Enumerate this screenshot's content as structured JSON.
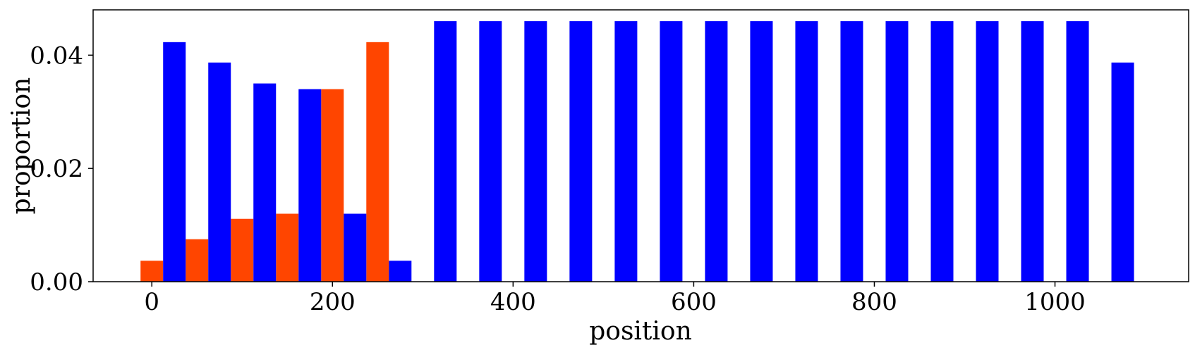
{
  "chart_data": {
    "type": "bar",
    "xlabel": "position",
    "ylabel": "proportion",
    "xlim": [
      -65,
      1148
    ],
    "ylim": [
      0,
      0.048
    ],
    "bar_width": 25,
    "grid": false,
    "legend": "none",
    "series": [
      {
        "color": "#ff4500",
        "x": [
          0,
          50,
          100,
          150,
          200,
          250
        ],
        "values": [
          0.0037,
          0.0075,
          0.0111,
          0.012,
          0.034,
          0.0423
        ]
      },
      {
        "color": "#0000ff",
        "x": [
          25,
          75,
          125,
          175,
          225,
          275,
          325,
          375,
          425,
          475,
          525,
          575,
          625,
          675,
          725,
          775,
          825,
          875,
          925,
          975,
          1025,
          1075
        ],
        "values": [
          0.0423,
          0.0387,
          0.035,
          0.034,
          0.012,
          0.0037,
          0.046,
          0.046,
          0.046,
          0.046,
          0.046,
          0.046,
          0.046,
          0.046,
          0.046,
          0.046,
          0.046,
          0.046,
          0.046,
          0.046,
          0.046,
          0.0387
        ]
      }
    ],
    "xticks": [
      0,
      200,
      400,
      600,
      800,
      1000
    ],
    "xtick_labels": [
      "0",
      "200",
      "400",
      "600",
      "800",
      "1000"
    ],
    "yticks": [
      0,
      0.02,
      0.04
    ],
    "ytick_labels": [
      "0.00",
      "0.02",
      "0.04"
    ]
  }
}
